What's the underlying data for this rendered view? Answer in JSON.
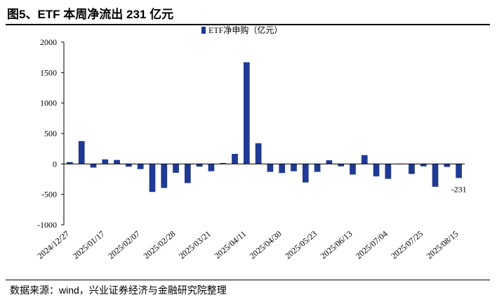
{
  "header": {
    "title": "图5、ETF 本周净流出 231 亿元"
  },
  "footer": {
    "source": "数据来源：wind，兴业证券经济与金融研究院整理"
  },
  "colors": {
    "bar": "#1f3a93",
    "axis": "#000000"
  },
  "chart_data": {
    "type": "bar",
    "title": "",
    "legend": {
      "label": "ETF净申购（亿元）",
      "position": "top-center"
    },
    "xlabel": "",
    "ylabel": "",
    "ylim": [
      -1000,
      2000
    ],
    "yticks": [
      -1000,
      -500,
      0,
      500,
      1000,
      1500,
      2000
    ],
    "categories": [
      "2024/12/27",
      "2025/01/03",
      "2025/01/10",
      "2025/01/17",
      "2025/01/24",
      "2025/01/31",
      "2025/02/07",
      "2025/02/14",
      "2025/02/21",
      "2025/02/28",
      "2025/03/07",
      "2025/03/14",
      "2025/03/21",
      "2025/03/28",
      "2025/04/04",
      "2025/04/11",
      "2025/04/18",
      "2025/04/25",
      "2025/04/30",
      "2025/05/09",
      "2025/05/16",
      "2025/05/23",
      "2025/05/30",
      "2025/06/06",
      "2025/06/13",
      "2025/06/20",
      "2025/06/27",
      "2025/07/04",
      "2025/07/11",
      "2025/07/18",
      "2025/07/25",
      "2025/08/01",
      "2025/08/08",
      "2025/08/15"
    ],
    "x_tick_labels": [
      "2024/12/27",
      "2025/01/17",
      "2025/02/07",
      "2025/02/28",
      "2025/03/21",
      "2025/04/11",
      "2025/04/30",
      "2025/05/23",
      "2025/06/13",
      "2025/07/04",
      "2025/07/25",
      "2025/08/15"
    ],
    "values": [
      30,
      375,
      -60,
      75,
      65,
      -45,
      -85,
      -460,
      -395,
      -145,
      -315,
      -45,
      -120,
      15,
      165,
      1670,
      340,
      -130,
      -150,
      -120,
      -305,
      -130,
      60,
      -40,
      -175,
      145,
      -205,
      -245,
      0,
      -165,
      -40,
      -375,
      -50,
      -231
    ],
    "data_labels": [
      {
        "category": "2025/08/15",
        "text": "-231"
      }
    ]
  }
}
